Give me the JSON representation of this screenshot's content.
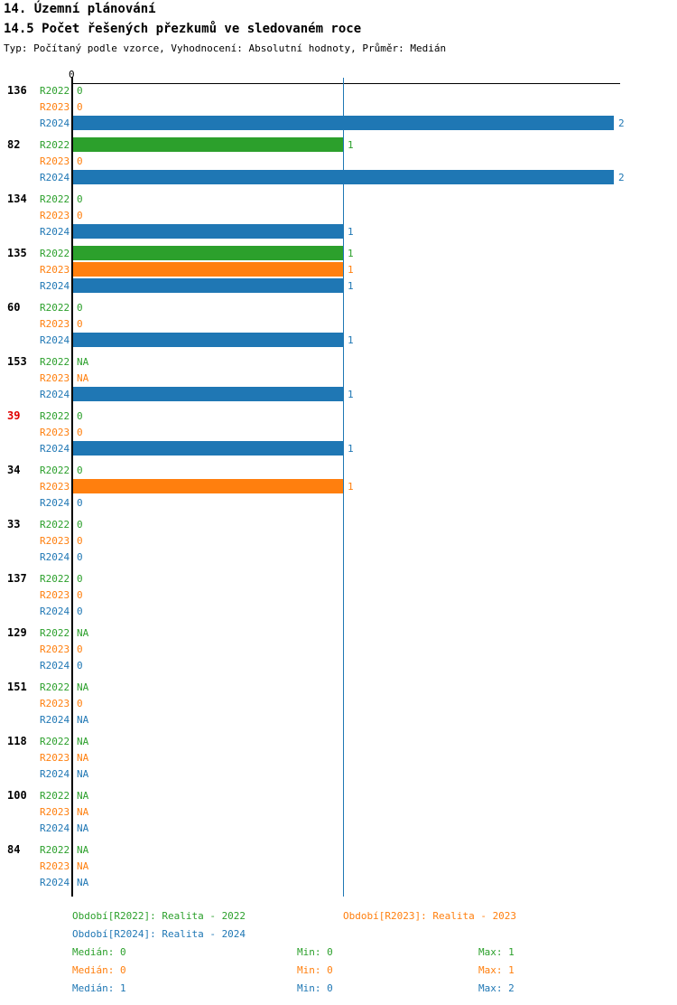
{
  "header": {
    "title": "14. Územní plánování",
    "subtitle": "14.5 Počet řešených přezkumů ve sledovaném roce",
    "meta": "Typ: Počítaný podle vzorce, Vyhodnocení: Absolutní hodnoty, Průměr: Medián"
  },
  "colors": {
    "r2022_green": "#2ca02c",
    "r2023_orange": "#ff7f0e",
    "r2024_blue": "#1f77b4",
    "highlight_red": "#e00000",
    "axis_black": "#000000"
  },
  "chart_data": {
    "type": "bar",
    "orientation": "horizontal",
    "xlim": [
      0,
      2
    ],
    "x_axis_tick_labels": [
      "0"
    ],
    "median_line_x": 1,
    "grid": false,
    "series": [
      {
        "key": "R2022",
        "label": "Realita - 2022",
        "color": "#2ca02c"
      },
      {
        "key": "R2023",
        "label": "Realita - 2023",
        "color": "#ff7f0e"
      },
      {
        "key": "R2024",
        "label": "Realita - 2024",
        "color": "#1f77b4"
      }
    ],
    "groups": [
      {
        "id": "136",
        "id_color": "#000000",
        "values": [
          "0",
          "0",
          "2"
        ]
      },
      {
        "id": "82",
        "id_color": "#000000",
        "values": [
          "1",
          "0",
          "2"
        ]
      },
      {
        "id": "134",
        "id_color": "#000000",
        "values": [
          "0",
          "0",
          "1"
        ]
      },
      {
        "id": "135",
        "id_color": "#000000",
        "values": [
          "1",
          "1",
          "1"
        ]
      },
      {
        "id": "60",
        "id_color": "#000000",
        "values": [
          "0",
          "0",
          "1"
        ]
      },
      {
        "id": "153",
        "id_color": "#000000",
        "values": [
          "NA",
          "NA",
          "1"
        ]
      },
      {
        "id": "39",
        "id_color": "#e00000",
        "values": [
          "0",
          "0",
          "1"
        ]
      },
      {
        "id": "34",
        "id_color": "#000000",
        "values": [
          "0",
          "1",
          "0"
        ]
      },
      {
        "id": "33",
        "id_color": "#000000",
        "values": [
          "0",
          "0",
          "0"
        ]
      },
      {
        "id": "137",
        "id_color": "#000000",
        "values": [
          "0",
          "0",
          "0"
        ]
      },
      {
        "id": "129",
        "id_color": "#000000",
        "values": [
          "NA",
          "0",
          "0"
        ]
      },
      {
        "id": "151",
        "id_color": "#000000",
        "values": [
          "NA",
          "0",
          "NA"
        ]
      },
      {
        "id": "118",
        "id_color": "#000000",
        "values": [
          "NA",
          "NA",
          "NA"
        ]
      },
      {
        "id": "100",
        "id_color": "#000000",
        "values": [
          "NA",
          "NA",
          "NA"
        ]
      },
      {
        "id": "84",
        "id_color": "#000000",
        "values": [
          "NA",
          "NA",
          "NA"
        ]
      }
    ],
    "stats": [
      {
        "series": "R2022",
        "median": "0",
        "min": "0",
        "max": "1"
      },
      {
        "series": "R2023",
        "median": "0",
        "min": "0",
        "max": "1"
      },
      {
        "series": "R2024",
        "median": "1",
        "min": "0",
        "max": "2"
      }
    ]
  },
  "legend": {
    "entries": [
      {
        "label": "Období[R2022]: Realita - 2022",
        "color": "#2ca02c"
      },
      {
        "label": "Období[R2023]: Realita - 2023",
        "color": "#ff7f0e"
      },
      {
        "label": "Období[R2024]: Realita - 2024",
        "color": "#1f77b4"
      }
    ],
    "stat_labels": {
      "median": "Medián",
      "min": "Min",
      "max": "Max"
    }
  }
}
